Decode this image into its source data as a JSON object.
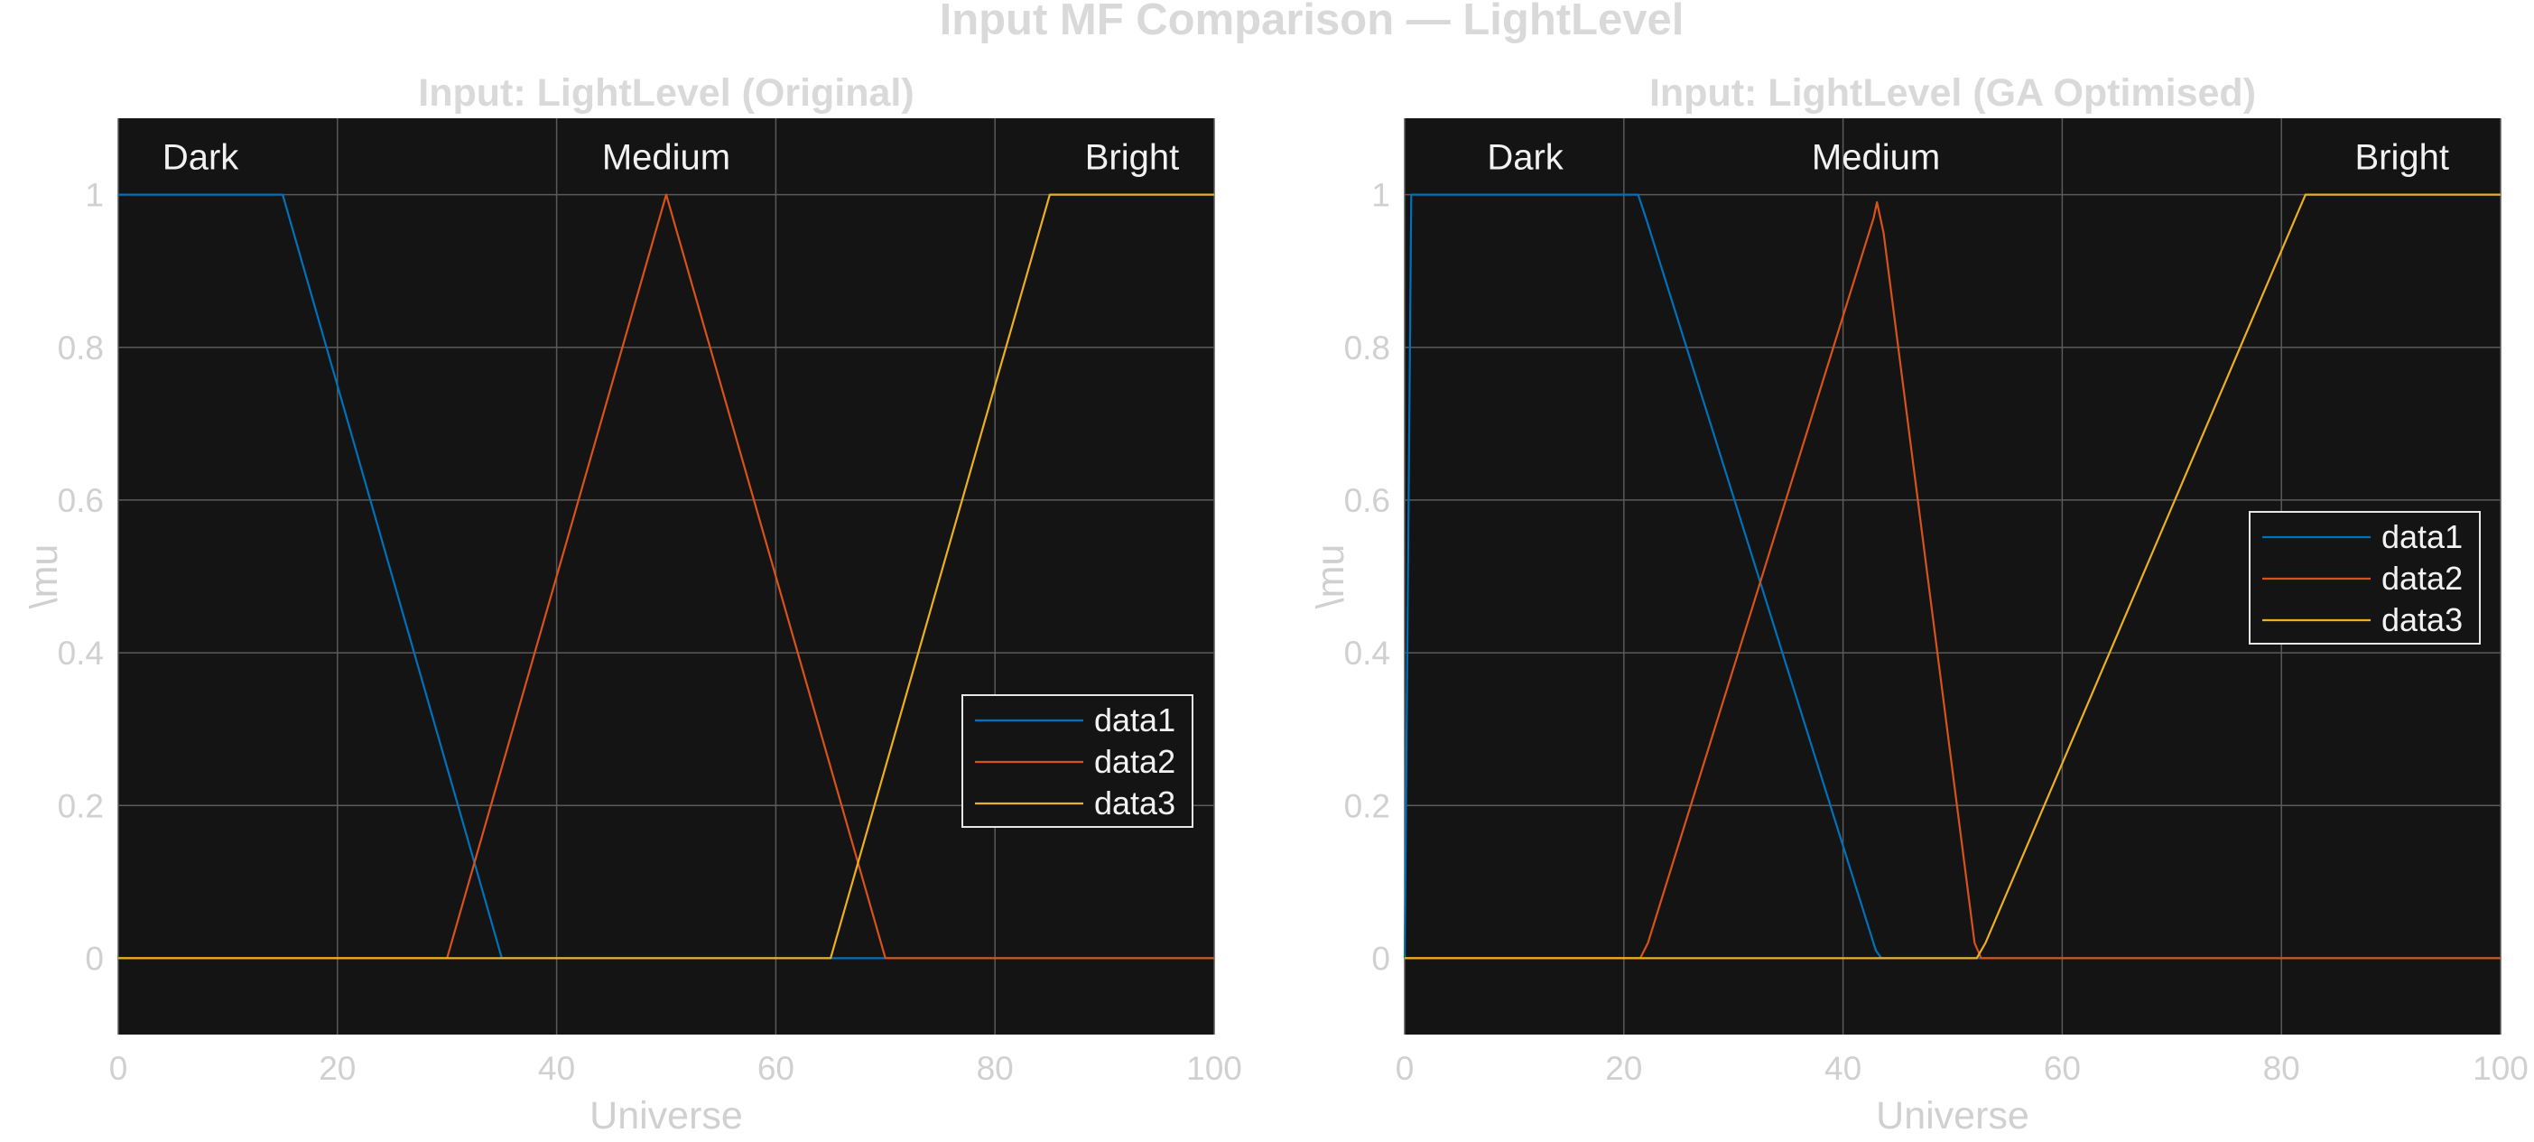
{
  "figure": {
    "suptitle": "Input MF Comparison — LightLevel",
    "background": "#ffffff",
    "axes_background": "#141414",
    "grid_color": "#5a5a5a",
    "text_color": "#d0d0d0"
  },
  "chart_data": [
    {
      "type": "line",
      "title": "Input: LightLevel (Original)",
      "xlabel": "Universe",
      "ylabel": "\\mu",
      "xlim": [
        0,
        100
      ],
      "ylim": [
        -0.1,
        1.1
      ],
      "xticks": [
        0,
        20,
        40,
        60,
        80,
        100
      ],
      "yticks": [
        0,
        0.2,
        0.4,
        0.6,
        0.8,
        1
      ],
      "xtick_labels": [
        "0",
        "20",
        "40",
        "60",
        "80",
        "100"
      ],
      "ytick_labels": [
        "0",
        "0.2",
        "0.4",
        "0.6",
        "0.8",
        "1"
      ],
      "grid": true,
      "legend_position": "lower-right",
      "series": [
        {
          "name": "data1",
          "color": "#0072bd",
          "points": [
            [
              0,
              1
            ],
            [
              15,
              1
            ],
            [
              35,
              0
            ],
            [
              100,
              0
            ]
          ]
        },
        {
          "name": "data2",
          "color": "#d95319",
          "points": [
            [
              0,
              0
            ],
            [
              30,
              0
            ],
            [
              50,
              1
            ],
            [
              70,
              0
            ],
            [
              100,
              0
            ]
          ]
        },
        {
          "name": "data3",
          "color": "#edb120",
          "points": [
            [
              0,
              0
            ],
            [
              65,
              0
            ],
            [
              85,
              1
            ],
            [
              100,
              1
            ]
          ]
        }
      ],
      "annotations": [
        {
          "text": "Dark",
          "x": 7.5
        },
        {
          "text": "Medium",
          "x": 50
        },
        {
          "text": "Bright",
          "x": 92.5
        }
      ]
    },
    {
      "type": "line",
      "title": "Input: LightLevel (GA Optimised)",
      "xlabel": "Universe",
      "ylabel": "\\mu",
      "xlim": [
        0,
        100
      ],
      "ylim": [
        -0.1,
        1.1
      ],
      "xticks": [
        0,
        20,
        40,
        60,
        80,
        100
      ],
      "yticks": [
        0,
        0.2,
        0.4,
        0.6,
        0.8,
        1
      ],
      "xtick_labels": [
        "0",
        "20",
        "40",
        "60",
        "80",
        "100"
      ],
      "ytick_labels": [
        "0",
        "0.2",
        "0.4",
        "0.6",
        "0.8",
        "1"
      ],
      "grid": true,
      "legend_position": "right",
      "series": [
        {
          "name": "data1",
          "color": "#0072bd",
          "points": [
            [
              0,
              0
            ],
            [
              0.6,
              1
            ],
            [
              21.3,
              1
            ],
            [
              22,
              0.97
            ],
            [
              43,
              0.01
            ],
            [
              43.5,
              0
            ],
            [
              100,
              0
            ]
          ]
        },
        {
          "name": "data2",
          "color": "#d95319",
          "points": [
            [
              0,
              0
            ],
            [
              21.5,
              0
            ],
            [
              22.2,
              0.02
            ],
            [
              42.8,
              0.97
            ],
            [
              43.1,
              0.99
            ],
            [
              43.7,
              0.95
            ],
            [
              52,
              0.02
            ],
            [
              52.6,
              0
            ],
            [
              100,
              0
            ]
          ]
        },
        {
          "name": "data3",
          "color": "#edb120",
          "points": [
            [
              0,
              0
            ],
            [
              52.2,
              0
            ],
            [
              53,
              0.02
            ],
            [
              81.6,
              0.98
            ],
            [
              82.2,
              1
            ],
            [
              100,
              1
            ]
          ]
        }
      ],
      "annotations": [
        {
          "text": "Dark",
          "x": 11
        },
        {
          "text": "Medium",
          "x": 43
        },
        {
          "text": "Bright",
          "x": 91
        }
      ]
    }
  ]
}
